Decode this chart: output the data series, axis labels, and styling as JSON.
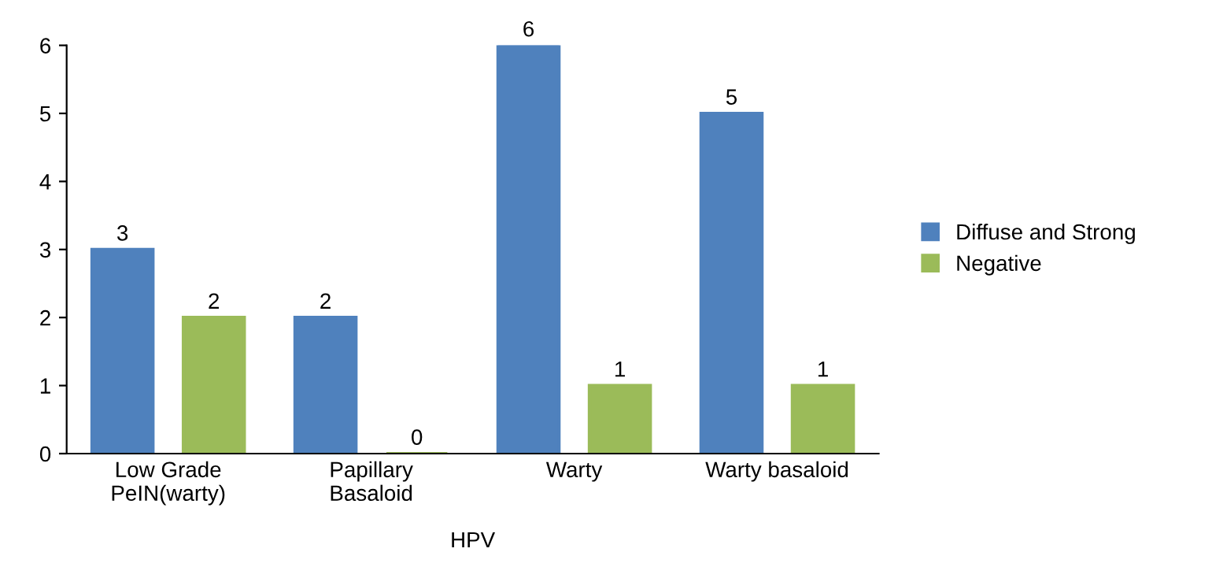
{
  "chart_data": {
    "type": "bar",
    "categories": [
      "Low Grade\nPeIN(warty)",
      "Papillary\nBasaloid",
      "Warty",
      "Warty basaloid"
    ],
    "xlabel": "HPV",
    "series": [
      {
        "name": "Diffuse and Strong",
        "color": "#4f81bd",
        "values": [
          3,
          2,
          6,
          5
        ]
      },
      {
        "name": "Negative",
        "color": "#9bbb59",
        "values": [
          2,
          0,
          1,
          1
        ]
      }
    ],
    "ylim": [
      0,
      6
    ],
    "yticks": [
      0,
      1,
      2,
      3,
      4,
      5,
      6
    ],
    "data_labels": true,
    "legend": "right",
    "grid": false
  }
}
